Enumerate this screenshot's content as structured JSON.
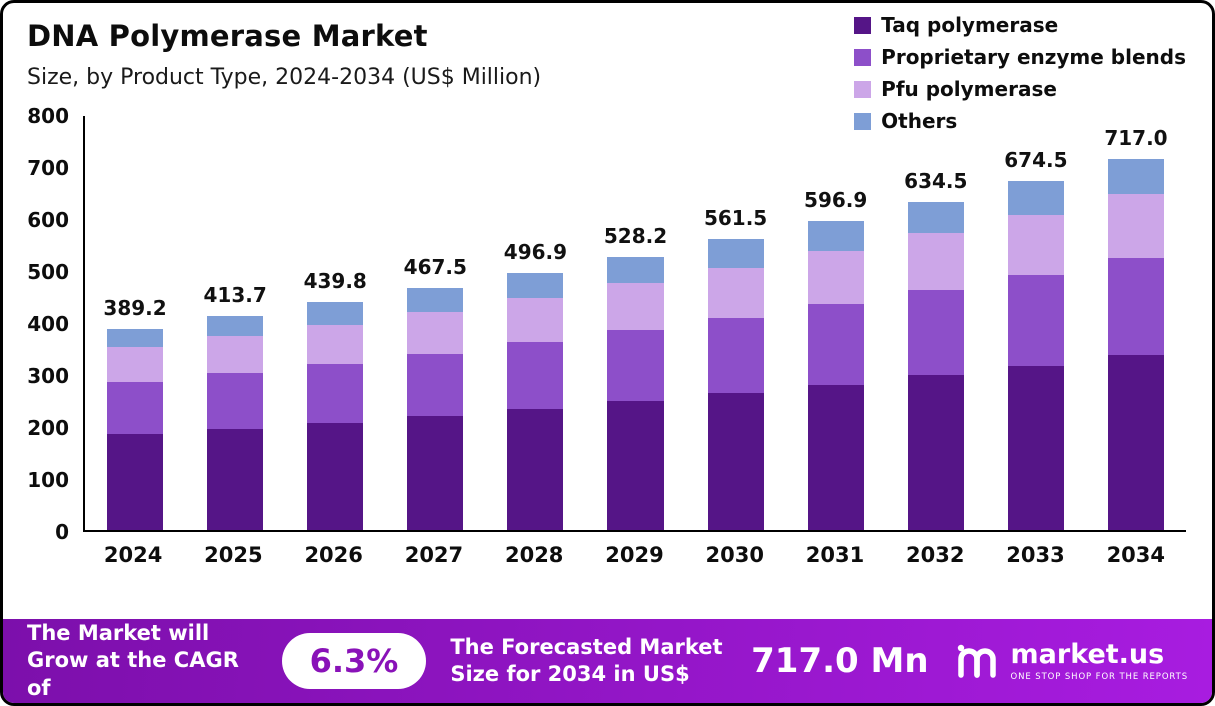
{
  "chart_data": {
    "type": "bar",
    "stacked": true,
    "title": "DNA Polymerase Market",
    "subtitle": "Size, by Product Type, 2024-2034 (US$ Million)",
    "categories": [
      "2024",
      "2025",
      "2026",
      "2027",
      "2028",
      "2029",
      "2030",
      "2031",
      "2032",
      "2033",
      "2034"
    ],
    "series": [
      {
        "name": "Taq polymerase",
        "color": "#551587",
        "values": [
          185,
          196,
          207,
          220,
          234,
          249,
          264,
          281,
          299,
          317,
          338
        ]
      },
      {
        "name": "Proprietary enzyme blends",
        "color": "#8d4fc9",
        "values": [
          101,
          107,
          114,
          121,
          129,
          137,
          146,
          155,
          165,
          175,
          187
        ]
      },
      {
        "name": "Pfu polymerase",
        "color": "#cca6e8",
        "values": [
          67,
          71,
          76,
          81,
          86,
          91,
          97,
          103,
          110,
          116,
          124
        ]
      },
      {
        "name": "Others",
        "color": "#7e9ed6",
        "values": [
          36.2,
          39.7,
          42.8,
          45.5,
          47.9,
          51.2,
          54.5,
          57.9,
          60.5,
          66.5,
          68.0
        ]
      }
    ],
    "totals": [
      389.2,
      413.7,
      439.8,
      467.5,
      496.9,
      528.2,
      561.5,
      596.9,
      634.5,
      674.5,
      717.0
    ],
    "ylim": [
      0,
      800
    ],
    "yticks": [
      0,
      100,
      200,
      300,
      400,
      500,
      600,
      700,
      800
    ],
    "grid": false,
    "legend_position": "top-right"
  },
  "footer": {
    "cagr_label": "The Market will Grow at the CAGR of",
    "cagr_value": "6.3%",
    "forecast_label": "The Forecasted Market Size for 2034 in US$",
    "forecast_value": "717.0 Mn",
    "brand": "market.us",
    "brand_tagline": "ONE STOP SHOP FOR THE REPORTS"
  },
  "colors": {
    "footer_gradient_start": "#7c0fab",
    "footer_gradient_end": "#a81ce0",
    "pill_text": "#8912b8",
    "axis": "#000000"
  }
}
